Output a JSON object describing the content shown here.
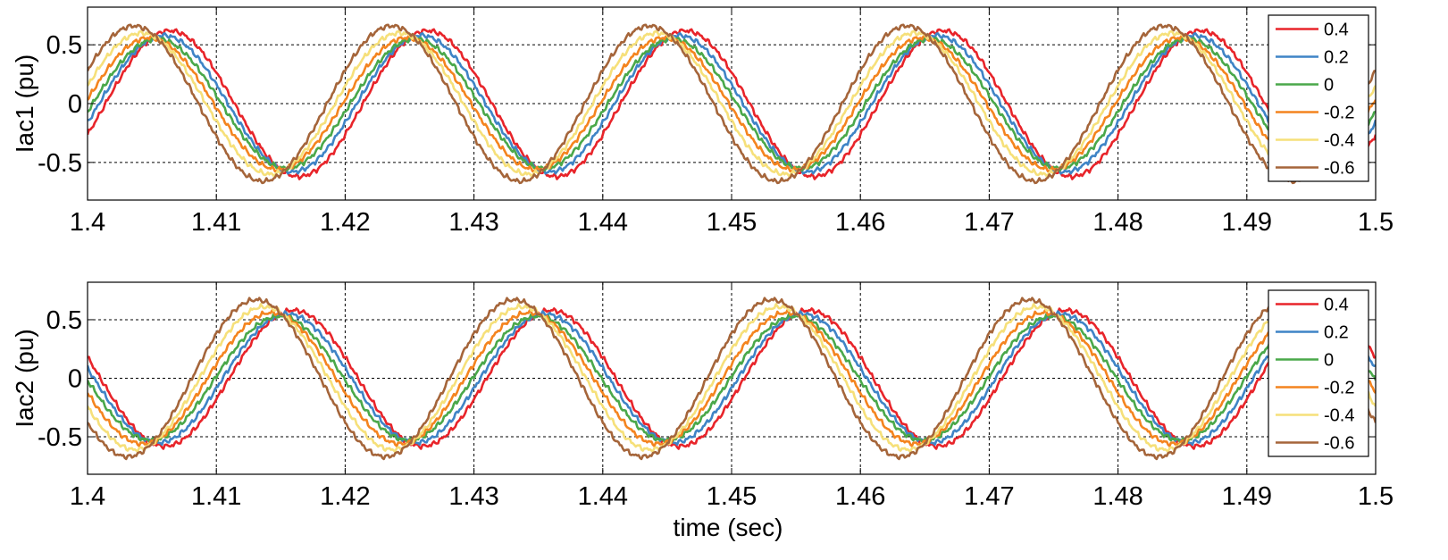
{
  "figure": {
    "xlabel": "time (sec)"
  },
  "colors": {
    "0.4": "#e8242a",
    "0.2": "#3f84c6",
    "0": "#4aa84a",
    "-0.2": "#f4841f",
    "-0.4": "#f6e07a",
    "-0.6": "#a5653a"
  },
  "chart_data": [
    {
      "type": "line",
      "ylabel": "Iac1 (pu)",
      "xlim": [
        1.4,
        1.5
      ],
      "ylim": [
        -0.82,
        0.82
      ],
      "xticks": [
        "1.4",
        "1.41",
        "1.42",
        "1.43",
        "1.44",
        "1.45",
        "1.46",
        "1.47",
        "1.48",
        "1.49",
        "1.5"
      ],
      "yticks": [
        "-0.5",
        "0",
        "0.5"
      ],
      "grid": true,
      "legend_position": "top-right",
      "frequency_hz": 50,
      "crossing_points": [
        {
          "x": 1.4053,
          "y": 0.54
        },
        {
          "x": 1.4153,
          "y": -0.54
        },
        {
          "x": 1.4253,
          "y": 0.54
        },
        {
          "x": 1.4353,
          "y": -0.54
        },
        {
          "x": 1.4453,
          "y": 0.54
        },
        {
          "x": 1.4553,
          "y": -0.54
        },
        {
          "x": 1.4653,
          "y": 0.54
        },
        {
          "x": 1.4753,
          "y": -0.54
        },
        {
          "x": 1.4853,
          "y": 0.54
        }
      ],
      "series": [
        {
          "name": "0.4",
          "amplitude": 0.62,
          "peak_times": [
            1.4064,
            1.4264,
            1.4464,
            1.4664,
            1.4864
          ]
        },
        {
          "name": "0.2",
          "amplitude": 0.58,
          "peak_times": [
            1.4059,
            1.4259,
            1.4459,
            1.4659,
            1.4859
          ]
        },
        {
          "name": "0",
          "amplitude": 0.55,
          "peak_times": [
            1.4054,
            1.4254,
            1.4454,
            1.4654,
            1.4854
          ]
        },
        {
          "name": "-0.2",
          "amplitude": 0.56,
          "peak_times": [
            1.4048,
            1.4248,
            1.4448,
            1.4648,
            1.4848
          ]
        },
        {
          "name": "-0.4",
          "amplitude": 0.6,
          "peak_times": [
            1.4042,
            1.4242,
            1.4442,
            1.4642,
            1.4842
          ]
        },
        {
          "name": "-0.6",
          "amplitude": 0.66,
          "peak_times": [
            1.4036,
            1.4236,
            1.4436,
            1.4636,
            1.4836
          ]
        }
      ]
    },
    {
      "type": "line",
      "ylabel": "Iac2 (pu)",
      "xlim": [
        1.4,
        1.5
      ],
      "ylim": [
        -0.82,
        0.82
      ],
      "xticks": [
        "1.4",
        "1.41",
        "1.42",
        "1.43",
        "1.44",
        "1.45",
        "1.46",
        "1.47",
        "1.48",
        "1.49",
        "1.5"
      ],
      "yticks": [
        "-0.5",
        "0",
        "0.5"
      ],
      "grid": true,
      "legend_position": "top-right",
      "frequency_hz": 50,
      "crossing_points": [
        {
          "x": 1.4049,
          "y": -0.5
        },
        {
          "x": 1.4149,
          "y": 0.5
        },
        {
          "x": 1.4249,
          "y": -0.5
        },
        {
          "x": 1.4349,
          "y": 0.5
        },
        {
          "x": 1.4449,
          "y": -0.5
        },
        {
          "x": 1.4549,
          "y": 0.5
        },
        {
          "x": 1.4649,
          "y": -0.5
        },
        {
          "x": 1.4749,
          "y": 0.5
        },
        {
          "x": 1.4849,
          "y": -0.5
        }
      ],
      "series": [
        {
          "name": "0.4",
          "amplitude": 0.58,
          "peak_times": [
            1.416,
            1.436,
            1.456,
            1.476,
            1.496
          ]
        },
        {
          "name": "0.2",
          "amplitude": 0.55,
          "peak_times": [
            1.4155,
            1.4355,
            1.4555,
            1.4755,
            1.4955
          ]
        },
        {
          "name": "0",
          "amplitude": 0.53,
          "peak_times": [
            1.4149,
            1.4349,
            1.4549,
            1.4749,
            1.4949
          ]
        },
        {
          "name": "-0.2",
          "amplitude": 0.56,
          "peak_times": [
            1.4143,
            1.4343,
            1.4543,
            1.4743,
            1.4943
          ]
        },
        {
          "name": "-0.4",
          "amplitude": 0.61,
          "peak_times": [
            1.4137,
            1.4337,
            1.4537,
            1.4737,
            1.4937
          ]
        },
        {
          "name": "-0.6",
          "amplitude": 0.67,
          "peak_times": [
            1.4131,
            1.4331,
            1.4531,
            1.4731,
            1.4931
          ]
        }
      ]
    }
  ]
}
